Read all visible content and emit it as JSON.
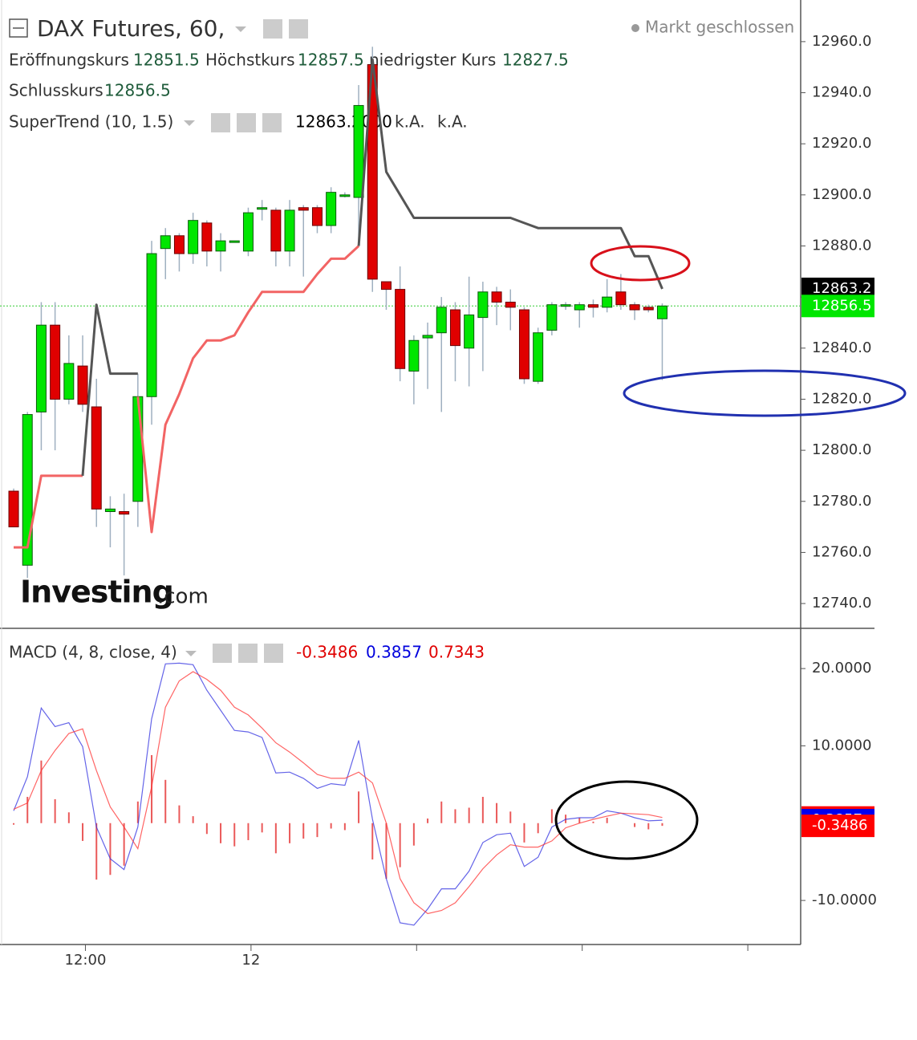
{
  "header": {
    "title": "DAX Futures, 60,",
    "status": "Markt geschlossen",
    "ohlc_labels": [
      "Eröffnungskurs",
      "Höchstkurs",
      "niedrigster Kurs",
      "Schlusskurs"
    ],
    "indicator": {
      "name": "SuperTrend (10, 1.5)",
      "value_labels": [
        "12863.2000",
        "k.A.",
        "k.A."
      ]
    },
    "macd_name": "MACD (4, 8, close, 4)"
  },
  "watermark": {
    "brand": "Investing",
    "suffix": ".com"
  },
  "chart_data": [
    {
      "type": "candlestick",
      "x": [
        0,
        1,
        2,
        3,
        4,
        5,
        6,
        7,
        8,
        9,
        10,
        11,
        12,
        13,
        14,
        15,
        16,
        17,
        18,
        19,
        20,
        21,
        22,
        23,
        24,
        25,
        26,
        27,
        28,
        29,
        30,
        31,
        32,
        33,
        34,
        35,
        36,
        37,
        38,
        39,
        40,
        41,
        42,
        43,
        44,
        45,
        46,
        47
      ],
      "open": [
        12784,
        12755,
        12815,
        12849,
        12820,
        12833,
        12817,
        12776,
        12776,
        12780,
        12821,
        12879,
        12884,
        12877,
        12889,
        12878,
        12882,
        12878,
        12895,
        12894,
        12878,
        12895,
        12895,
        12888,
        12900,
        12899,
        12951,
        12866,
        12863,
        12831,
        12844,
        12846,
        12855,
        12840,
        12852,
        12862,
        12858,
        12855,
        12827,
        12847,
        12857,
        12855,
        12857,
        12856,
        12862,
        12857,
        12856,
        12851.5
      ],
      "high": [
        12785,
        12815,
        12858,
        12858,
        12845,
        12845,
        12828,
        12782,
        12783,
        12830,
        12882,
        12887,
        12885,
        12893,
        12890,
        12885,
        12882,
        12895,
        12898,
        12895,
        12898,
        12896,
        12896,
        12903,
        12901,
        12943,
        12958,
        12866,
        12872,
        12845,
        12850,
        12860,
        12858,
        12868,
        12866,
        12864,
        12863,
        12856,
        12848,
        12858,
        12858,
        12858,
        12859,
        12867,
        12869,
        12858,
        12857,
        12857.5
      ],
      "low": [
        12770,
        12750,
        12800,
        12800,
        12818,
        12815,
        12770,
        12762,
        12751,
        12770,
        12810,
        12867,
        12870,
        12873,
        12872,
        12870,
        12882,
        12876,
        12890,
        12872,
        12872,
        12868,
        12885,
        12885,
        12899,
        12880,
        12862,
        12855,
        12827,
        12818,
        12824,
        12815,
        12827,
        12825,
        12831,
        12849,
        12847,
        12826,
        12826,
        12845,
        12855,
        12848,
        12852,
        12854,
        12855,
        12851,
        12854,
        12827.5
      ],
      "close": [
        12770,
        12814,
        12849,
        12820,
        12834,
        12818,
        12777,
        12777,
        12775,
        12821,
        12877,
        12884,
        12877,
        12890,
        12878,
        12882,
        12882,
        12893,
        12895,
        12878,
        12894,
        12894,
        12888,
        12901,
        12900,
        12935,
        12867,
        12863,
        12832,
        12843,
        12845,
        12856,
        12841,
        12853,
        12862,
        12858,
        12856,
        12828,
        12846,
        12857,
        12857,
        12857,
        12856,
        12860,
        12857,
        12855,
        12855,
        12856.5
      ],
      "up_color": "#00e600",
      "down_color": "#e00000",
      "series": [
        {
          "color": "#f26464",
          "values": [
            12762,
            12762,
            12790,
            12790,
            12790,
            12790,
            null,
            null,
            null,
            12821,
            12768,
            12810,
            12822,
            12836,
            12843,
            12843,
            12845,
            12854,
            12862,
            12862,
            12862,
            12862,
            12869,
            12875,
            12875,
            12880,
            null,
            null,
            null,
            null,
            null,
            null,
            null,
            null,
            null,
            null,
            null,
            null,
            null,
            null,
            null,
            null,
            null,
            null,
            null,
            null,
            null,
            null
          ]
        },
        {
          "color": "#555555",
          "values": [
            null,
            null,
            null,
            null,
            null,
            12790,
            12857,
            12830,
            12830,
            12830,
            null,
            null,
            null,
            null,
            null,
            null,
            null,
            null,
            null,
            null,
            null,
            null,
            null,
            null,
            null,
            12880,
            12953,
            12909,
            12900,
            12891,
            12891,
            12891,
            12891,
            12891,
            12891,
            12891,
            12891,
            12889,
            12887,
            12887,
            12887,
            12887,
            12887,
            12887,
            12887,
            12876,
            12876,
            12863.2
          ]
        }
      ],
      "price_line_color": "#33cc33",
      "xlim": [
        -0.99,
        57.03
      ],
      "ylim": [
        12730.6,
        12976.3
      ],
      "yticks": [
        {
          "value": 12960,
          "label": "12960.0"
        },
        {
          "value": 12940,
          "label": "12940.0"
        },
        {
          "value": 12920,
          "label": "12920.0"
        },
        {
          "value": 12900,
          "label": "12900.0"
        },
        {
          "value": 12880,
          "label": "12880.0"
        },
        {
          "value": 12860,
          "label": "12860.0"
        },
        {
          "value": 12840,
          "label": "12840.0"
        },
        {
          "value": 12820,
          "label": "12820.0"
        },
        {
          "value": 12800,
          "label": "12800.0"
        },
        {
          "value": 12780,
          "label": "12780.0"
        },
        {
          "value": 12760,
          "label": "12760.0"
        },
        {
          "value": 12740,
          "label": "12740.0"
        }
      ]
    },
    {
      "type": "macd",
      "series": [
        {
          "color": "#e53030",
          "style": "histogram",
          "values": [
            -0.2,
            3.4,
            8.1,
            3.1,
            1.4,
            -2.3,
            -7.3,
            -6.7,
            -5.5,
            2.8,
            8.8,
            5.6,
            2.3,
            0.9,
            -1.4,
            -2.6,
            -3,
            -2.2,
            -1.2,
            -3.9,
            -2.6,
            -2,
            -1.8,
            -0.7,
            -0.9,
            4.1,
            -4.7,
            -7.2,
            -5.7,
            -2.9,
            0.6,
            2.8,
            1.8,
            2,
            3.4,
            2.6,
            1.5,
            -2.5,
            -1.3,
            1.8,
            1.1,
            0.7,
            0.2,
            0.7,
            0,
            -0.5,
            -0.8,
            -0.3486
          ]
        },
        {
          "color": "#3030e0",
          "style": "line",
          "values": [
            1.6,
            6,
            14.9,
            12.5,
            13,
            9.9,
            -0.5,
            -4.6,
            -6,
            -0.5,
            13.5,
            20.6,
            20.7,
            20.5,
            17.2,
            14.6,
            12,
            11.8,
            11.1,
            6.5,
            6.6,
            5.8,
            4.5,
            5.1,
            4.9,
            10.7,
            0.5,
            -7.2,
            -12.9,
            -13.2,
            -11.1,
            -8.5,
            -8.5,
            -6.2,
            -2.5,
            -1.5,
            -1.3,
            -5.6,
            -4.4,
            -0.5,
            0.5,
            0.7,
            0.7,
            1.6,
            1.3,
            0.7,
            0.3,
            0.3857
          ]
        },
        {
          "color": "#ff3030",
          "style": "line",
          "values": [
            1.8,
            2.6,
            6.8,
            9.4,
            11.6,
            12.2,
            6.8,
            2.1,
            -0.5,
            -3.3,
            4.7,
            15,
            18.4,
            19.6,
            18.6,
            17.2,
            15,
            14,
            12.3,
            10.4,
            9.2,
            7.8,
            6.3,
            5.8,
            5.8,
            6.6,
            5.2,
            0,
            -7.2,
            -10.3,
            -11.7,
            -11.3,
            -10.3,
            -8.2,
            -5.9,
            -4.1,
            -2.8,
            -3.1,
            -3.1,
            -2.3,
            -0.6,
            0,
            0.5,
            0.9,
            1.3,
            1.2,
            1.1,
            0.7343
          ]
        }
      ],
      "ylim": [
        -15.7,
        25.1
      ],
      "yticks": [
        {
          "value": 20,
          "label": "20.0000"
        },
        {
          "value": 10,
          "label": "10.0000"
        },
        {
          "value": -10,
          "label": "-10.0000"
        }
      ],
      "xticks": [
        {
          "value": 5.2,
          "label": "12:00"
        },
        {
          "value": 17.2,
          "label": "12"
        },
        {
          "value": 29.2,
          "label": null
        },
        {
          "value": 41.2,
          "label": null
        },
        {
          "value": 53.2,
          "label": null
        }
      ]
    }
  ]
}
